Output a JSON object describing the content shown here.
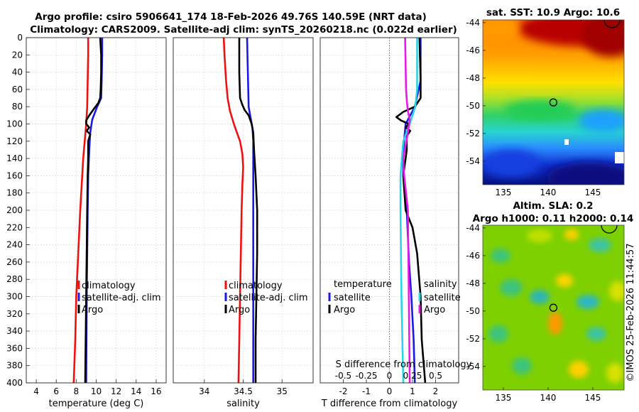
{
  "header": {
    "title_line1": "Argo profile: csiro 5906641_174 18-Feb-2026 49.76S 140.59E (NRT data)",
    "title_line2": "Climatology: CARS2009. Satellite-adj clim: synTS_20260218.nc (0.022d earlier)"
  },
  "timestamp": "©IMOS 25-Feb-2026 11:44:57",
  "colors": {
    "climatology": "#ee1111",
    "satellite": "#1a1ae6",
    "argo": "#000000",
    "sal_satellite": "#2ad4e6",
    "sal_argo": "#e61ae6"
  },
  "chart_data": [
    {
      "id": "temperature",
      "type": "line",
      "xlabel": "temperature (deg C)",
      "ylabel": "",
      "xlim": [
        3,
        17
      ],
      "ylim": [
        0,
        400
      ],
      "y_reversed": true,
      "grid": true,
      "xticks": [
        4,
        6,
        8,
        10,
        12,
        14,
        16
      ],
      "yticks": [
        0,
        20,
        40,
        60,
        80,
        100,
        120,
        140,
        160,
        180,
        200,
        220,
        240,
        260,
        280,
        300,
        320,
        340,
        360,
        380,
        400
      ],
      "legend": [
        "climatology",
        "satellite-adj. clim",
        "Argo"
      ],
      "series": [
        {
          "name": "climatology",
          "depth": [
            0,
            20,
            50,
            80,
            100,
            120,
            140,
            160,
            200,
            250,
            300,
            350,
            400
          ],
          "values": [
            9.2,
            9.2,
            9.15,
            9.1,
            9.0,
            8.85,
            8.7,
            8.6,
            8.4,
            8.2,
            8.0,
            7.9,
            7.75
          ]
        },
        {
          "name": "satellite-adj. clim",
          "depth": [
            0,
            20,
            50,
            70,
            80,
            95,
            110,
            130,
            160,
            200,
            300,
            400
          ],
          "values": [
            10.6,
            10.6,
            10.55,
            10.5,
            10.1,
            9.6,
            9.4,
            9.3,
            9.2,
            9.15,
            9.05,
            9.0
          ]
        },
        {
          "name": "Argo",
          "depth": [
            0,
            20,
            40,
            60,
            70,
            76,
            82,
            90,
            96,
            100,
            104,
            108,
            112,
            120,
            140,
            160,
            200,
            250,
            300,
            350,
            400
          ],
          "values": [
            10.4,
            10.5,
            10.5,
            10.45,
            10.4,
            10.2,
            9.8,
            9.3,
            9.0,
            9.0,
            9.3,
            9.05,
            9.4,
            9.2,
            9.2,
            9.15,
            9.1,
            9.05,
            9.0,
            8.95,
            8.9
          ]
        }
      ]
    },
    {
      "id": "salinity",
      "type": "line",
      "xlabel": "salinity",
      "ylabel": "",
      "xlim": [
        33.6,
        35.4
      ],
      "ylim": [
        0,
        400
      ],
      "y_reversed": true,
      "grid": true,
      "xticks": [
        34,
        34.5,
        35
      ],
      "yticks": [
        0,
        20,
        40,
        60,
        80,
        100,
        120,
        140,
        160,
        180,
        200,
        220,
        240,
        260,
        280,
        300,
        320,
        340,
        360,
        380,
        400
      ],
      "legend": [
        "climatology",
        "satellite-adj. clim",
        "Argo"
      ],
      "series": [
        {
          "name": "climatology",
          "depth": [
            0,
            20,
            50,
            70,
            85,
            100,
            110,
            120,
            135,
            150,
            170,
            200,
            250,
            300,
            350,
            400
          ],
          "values": [
            34.25,
            34.26,
            34.28,
            34.3,
            34.33,
            34.38,
            34.42,
            34.46,
            34.49,
            34.5,
            34.49,
            34.48,
            34.47,
            34.46,
            34.45,
            34.44
          ]
        },
        {
          "name": "satellite-adj. clim",
          "depth": [
            0,
            40,
            80,
            95,
            105,
            120,
            160,
            200,
            300,
            400
          ],
          "values": [
            34.55,
            34.56,
            34.57,
            34.6,
            34.62,
            34.63,
            34.63,
            34.63,
            34.63,
            34.63
          ]
        },
        {
          "name": "Argo",
          "depth": [
            0,
            40,
            70,
            78,
            84,
            90,
            100,
            110,
            130,
            160,
            200,
            250,
            300,
            350,
            400
          ],
          "values": [
            34.45,
            34.45,
            34.46,
            34.49,
            34.52,
            34.57,
            34.61,
            34.63,
            34.64,
            34.66,
            34.68,
            34.68,
            34.67,
            34.66,
            34.66
          ]
        }
      ]
    },
    {
      "id": "difference",
      "type": "line",
      "xlabel": "T difference from climatology",
      "x2label": "S difference from climatology",
      "ylabel": "",
      "xlim": [
        -3,
        3
      ],
      "x2lim": [
        -0.75,
        0.75
      ],
      "ylim": [
        0,
        400
      ],
      "y_reversed": true,
      "grid": true,
      "xticks": [
        -2,
        -1,
        0,
        1,
        2
      ],
      "x2ticks": [
        -0.5,
        -0.25,
        0,
        0.25,
        0.5
      ],
      "x2ticklabels": [
        "-0.5",
        "-0.25",
        "0",
        "0.25",
        "0.5"
      ],
      "yticks": [
        0,
        20,
        40,
        60,
        80,
        100,
        120,
        140,
        160,
        180,
        200,
        220,
        240,
        260,
        280,
        300,
        320,
        340,
        360,
        380,
        400
      ],
      "legend_left_title": "temperature",
      "legend_right_title": "salinity",
      "legend_left": [
        "satellite",
        "Argo"
      ],
      "legend_right": [
        "satellite",
        "Argo"
      ],
      "series": [
        {
          "name": "temperature satellite",
          "axis": "T",
          "depth": [
            0,
            50,
            80,
            100,
            130,
            160,
            200,
            260,
            300,
            350,
            400
          ],
          "values": [
            1.35,
            1.35,
            1.1,
            0.7,
            0.6,
            0.6,
            0.75,
            0.85,
            0.95,
            1.05,
            1.1
          ]
        },
        {
          "name": "temperature Argo",
          "axis": "T",
          "depth": [
            0,
            50,
            70,
            80,
            86,
            92,
            96,
            100,
            104,
            108,
            114,
            130,
            160,
            200,
            220,
            250,
            300,
            350,
            400
          ],
          "values": [
            1.3,
            1.35,
            1.35,
            1.1,
            0.6,
            0.3,
            0.5,
            0.85,
            0.7,
            0.9,
            0.75,
            0.75,
            0.6,
            0.7,
            1.0,
            1.2,
            1.35,
            1.4,
            1.55
          ]
        },
        {
          "name": "salinity satellite",
          "axis": "S",
          "depth": [
            0,
            60,
            80,
            100,
            120,
            160,
            200,
            300,
            400
          ],
          "values": [
            0.3,
            0.3,
            0.28,
            0.22,
            0.15,
            0.12,
            0.12,
            0.13,
            0.15
          ]
        },
        {
          "name": "salinity Argo",
          "axis": "S",
          "depth": [
            0,
            60,
            75,
            85,
            95,
            110,
            140,
            160,
            200,
            300,
            400
          ],
          "values": [
            0.17,
            0.18,
            0.19,
            0.2,
            0.22,
            0.2,
            0.15,
            0.16,
            0.2,
            0.21,
            0.22
          ]
        }
      ]
    },
    {
      "id": "sst_map",
      "type": "heatmap",
      "title": "sat. SST: 10.9 Argo: 10.6",
      "xticks": [
        135,
        140,
        145
      ],
      "yticks": [
        -44,
        -46,
        -48,
        -50,
        -52,
        -54
      ],
      "xlim": [
        132.7,
        148.5
      ],
      "ylim": [
        -55.7,
        -43.8
      ],
      "marker": {
        "lon": 140.59,
        "lat": -49.76
      }
    },
    {
      "id": "sla_map",
      "type": "heatmap",
      "title": "Altim. SLA: 0.2",
      "subtitle": "Argo h1000: 0.11 h2000: 0.14",
      "xticks": [
        135,
        140,
        145
      ],
      "yticks": [
        -44,
        -46,
        -48,
        -50,
        -52,
        -54
      ],
      "xlim": [
        132.7,
        148.5
      ],
      "ylim": [
        -55.7,
        -43.8
      ],
      "marker": {
        "lon": 140.59,
        "lat": -49.76
      }
    }
  ]
}
